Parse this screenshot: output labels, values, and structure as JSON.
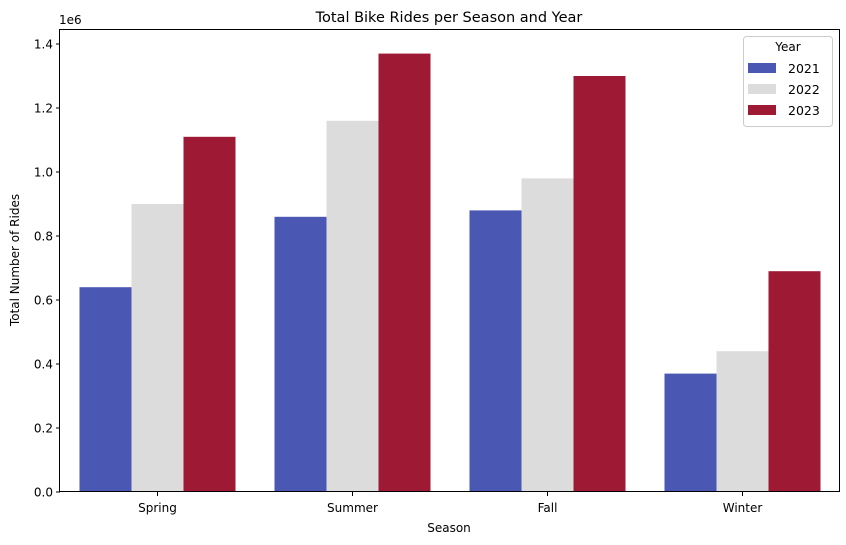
{
  "chart_data": {
    "type": "bar",
    "title": "Total Bike Rides per Season and Year",
    "xlabel": "Season",
    "ylabel": "Total Number of Rides",
    "y_scale_label": "1e6",
    "categories": [
      "Spring",
      "Summer",
      "Fall",
      "Winter"
    ],
    "ylim": [
      0,
      1.4
    ],
    "yticks": [
      "0.0",
      "0.2",
      "0.4",
      "0.6",
      "0.8",
      "1.0",
      "1.2",
      "1.4"
    ],
    "series": [
      {
        "name": "2021",
        "color": "#4a57b3",
        "values": [
          0.64,
          0.86,
          0.88,
          0.37
        ]
      },
      {
        "name": "2022",
        "color": "#dcdcdc",
        "values": [
          0.9,
          1.16,
          0.98,
          0.44
        ]
      },
      {
        "name": "2023",
        "color": "#9e1a34",
        "values": [
          1.11,
          1.37,
          1.3,
          0.69
        ]
      }
    ],
    "legend": {
      "title": "Year",
      "position": "top-right"
    },
    "grid": false
  }
}
